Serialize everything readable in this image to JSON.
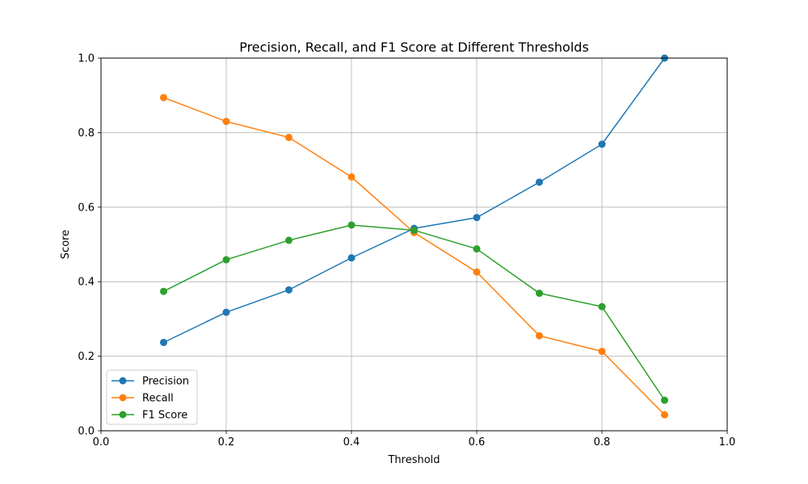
{
  "chart_data": {
    "type": "line",
    "title": "Precision, Recall, and F1 Score at Different Thresholds",
    "xlabel": "Threshold",
    "ylabel": "Score",
    "xlim": [
      0.0,
      1.0
    ],
    "ylim": [
      0.0,
      1.0
    ],
    "xticks": [
      "0.0",
      "0.2",
      "0.4",
      "0.6",
      "0.8",
      "1.0"
    ],
    "yticks": [
      "0.0",
      "0.2",
      "0.4",
      "0.6",
      "0.8",
      "1.0"
    ],
    "grid": true,
    "legend_position": "lower-left",
    "x": [
      0.1,
      0.2,
      0.3,
      0.4,
      0.5,
      0.6,
      0.7,
      0.8,
      0.9
    ],
    "series": [
      {
        "name": "Precision",
        "color": "#1f77b4",
        "values": [
          0.237,
          0.318,
          0.378,
          0.464,
          0.543,
          0.572,
          0.667,
          0.769,
          1.0
        ]
      },
      {
        "name": "Recall",
        "color": "#ff7f0e",
        "values": [
          0.894,
          0.83,
          0.787,
          0.681,
          0.532,
          0.426,
          0.255,
          0.213,
          0.043
        ]
      },
      {
        "name": "F1 Score",
        "color": "#2ca02c",
        "values": [
          0.374,
          0.459,
          0.511,
          0.552,
          0.538,
          0.488,
          0.369,
          0.333,
          0.082
        ]
      }
    ]
  }
}
